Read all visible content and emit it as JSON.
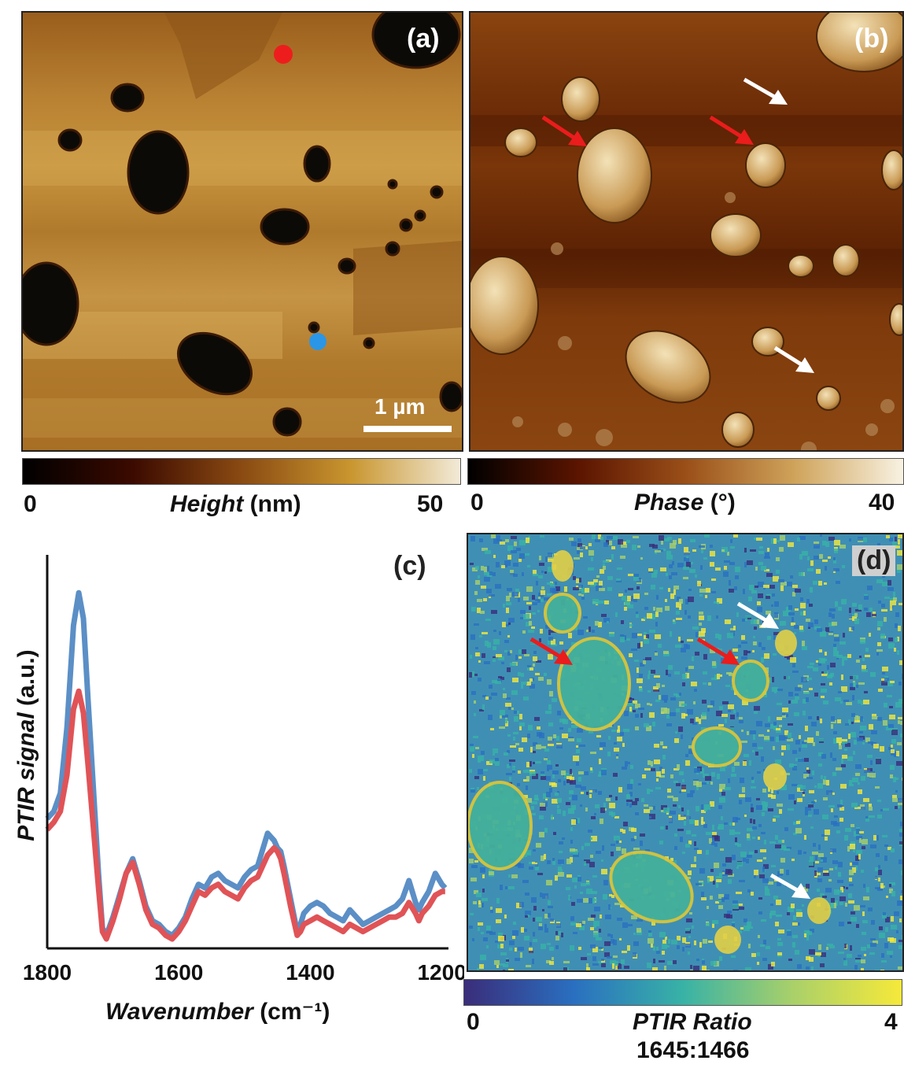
{
  "panels": {
    "a": {
      "label": "(a)",
      "scale_bar_label": "1 µm",
      "colorbar": {
        "min": "0",
        "max": "50",
        "title": "Height",
        "unit": "(nm)",
        "colors": [
          "#000000",
          "#3b0a00",
          "#8a4a12",
          "#c9962f",
          "#f2ead8"
        ]
      }
    },
    "b": {
      "label": "(b)",
      "colorbar": {
        "min": "0",
        "max": "40",
        "title": "Phase",
        "unit": "(°)",
        "colors": [
          "#000000",
          "#5a1400",
          "#9a4f18",
          "#cfa35a",
          "#f8f2e2"
        ]
      }
    },
    "c": {
      "label": "(c)"
    },
    "d": {
      "label": "(d)",
      "colorbar": {
        "min": "0",
        "max": "4",
        "title": "PTIR Ratio",
        "subtitle": "1645:1466",
        "colors": [
          "#3a2d7a",
          "#2a6fc0",
          "#38b2a6",
          "#a9d06a",
          "#f6e93a"
        ]
      }
    }
  },
  "chart_data": {
    "type": "line",
    "title": "",
    "xlabel": "Wavenumber",
    "xlabel_unit": "(cm⁻¹)",
    "ylabel": "PTIR signal",
    "ylabel_unit": "(a.u.)",
    "xlim": [
      1800,
      1190
    ],
    "ylim": [
      0,
      1
    ],
    "x_reversed": true,
    "x_ticks": [
      "1800",
      "1600",
      "1400",
      "1200"
    ],
    "x_tick_values": [
      1800,
      1600,
      1400,
      1200
    ],
    "series": [
      {
        "color": "#5b8fc6",
        "x": [
          1800,
          1790,
          1780,
          1770,
          1760,
          1752,
          1745,
          1738,
          1730,
          1722,
          1716,
          1710,
          1700,
          1690,
          1680,
          1670,
          1660,
          1650,
          1640,
          1630,
          1620,
          1610,
          1600,
          1590,
          1580,
          1570,
          1560,
          1550,
          1540,
          1530,
          1520,
          1510,
          1500,
          1490,
          1480,
          1470,
          1465,
          1460,
          1455,
          1450,
          1445,
          1440,
          1430,
          1420,
          1415,
          1410,
          1400,
          1390,
          1380,
          1370,
          1360,
          1350,
          1340,
          1330,
          1320,
          1310,
          1300,
          1290,
          1280,
          1270,
          1260,
          1250,
          1240,
          1235,
          1230,
          1220,
          1210,
          1200,
          1195
        ],
        "y": [
          0.33,
          0.35,
          0.4,
          0.58,
          0.86,
          0.95,
          0.88,
          0.66,
          0.42,
          0.18,
          0.03,
          0.01,
          0.06,
          0.12,
          0.18,
          0.22,
          0.16,
          0.09,
          0.05,
          0.04,
          0.02,
          0.01,
          0.03,
          0.06,
          0.11,
          0.15,
          0.14,
          0.17,
          0.18,
          0.16,
          0.15,
          0.14,
          0.17,
          0.19,
          0.2,
          0.26,
          0.29,
          0.28,
          0.27,
          0.25,
          0.24,
          0.2,
          0.11,
          0.02,
          0.04,
          0.07,
          0.09,
          0.1,
          0.09,
          0.07,
          0.06,
          0.05,
          0.08,
          0.06,
          0.04,
          0.05,
          0.06,
          0.07,
          0.08,
          0.09,
          0.11,
          0.16,
          0.1,
          0.08,
          0.1,
          0.13,
          0.18,
          0.15,
          0.14
        ]
      },
      {
        "color": "#e05357",
        "x": [
          1800,
          1790,
          1780,
          1770,
          1760,
          1752,
          1745,
          1738,
          1730,
          1722,
          1716,
          1710,
          1700,
          1690,
          1680,
          1670,
          1660,
          1650,
          1640,
          1630,
          1620,
          1610,
          1600,
          1590,
          1580,
          1570,
          1560,
          1550,
          1540,
          1530,
          1520,
          1510,
          1500,
          1490,
          1480,
          1470,
          1465,
          1460,
          1455,
          1450,
          1445,
          1440,
          1430,
          1420,
          1415,
          1410,
          1400,
          1390,
          1380,
          1370,
          1360,
          1350,
          1340,
          1330,
          1320,
          1310,
          1300,
          1290,
          1280,
          1270,
          1260,
          1250,
          1240,
          1235,
          1230,
          1220,
          1210,
          1200,
          1195
        ],
        "y": [
          0.3,
          0.32,
          0.35,
          0.45,
          0.63,
          0.68,
          0.62,
          0.48,
          0.31,
          0.14,
          0.02,
          0.0,
          0.05,
          0.11,
          0.18,
          0.21,
          0.15,
          0.08,
          0.04,
          0.03,
          0.01,
          0.0,
          0.02,
          0.05,
          0.09,
          0.13,
          0.12,
          0.14,
          0.15,
          0.13,
          0.12,
          0.11,
          0.14,
          0.16,
          0.17,
          0.21,
          0.23,
          0.24,
          0.25,
          0.24,
          0.22,
          0.18,
          0.09,
          0.01,
          0.02,
          0.04,
          0.05,
          0.06,
          0.05,
          0.04,
          0.03,
          0.02,
          0.04,
          0.03,
          0.02,
          0.03,
          0.04,
          0.05,
          0.06,
          0.06,
          0.07,
          0.1,
          0.07,
          0.05,
          0.07,
          0.09,
          0.12,
          0.13,
          0.13
        ]
      }
    ]
  }
}
